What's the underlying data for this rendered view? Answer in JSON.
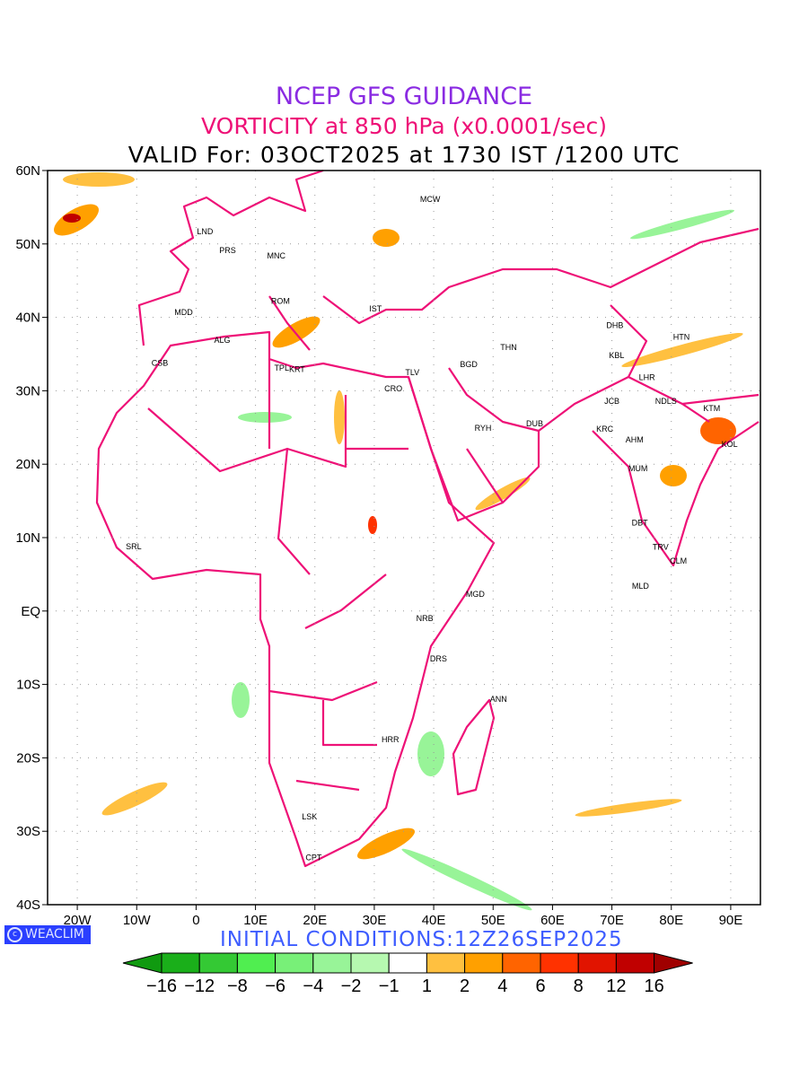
{
  "titles": {
    "line1": "NCEP GFS GUIDANCE",
    "line2": "VORTICITY at 850 hPa (x0.0001/sec)",
    "line3": "VALID For: 03OCT2025 at 1730 IST /1200 UTC"
  },
  "initial_conditions": "INITIAL  CONDITIONS:12Z26SEP2025",
  "logo": {
    "text": "WEACLIM",
    "icon": "copyright-icon"
  },
  "map": {
    "lon_range": [
      -25,
      95
    ],
    "lat_range": [
      -40,
      60
    ],
    "lon_ticks": [
      {
        "v": -20,
        "l": "20W"
      },
      {
        "v": -10,
        "l": "10W"
      },
      {
        "v": 0,
        "l": "0"
      },
      {
        "v": 10,
        "l": "10E"
      },
      {
        "v": 20,
        "l": "20E"
      },
      {
        "v": 30,
        "l": "30E"
      },
      {
        "v": 40,
        "l": "40E"
      },
      {
        "v": 50,
        "l": "50E"
      },
      {
        "v": 60,
        "l": "60E"
      },
      {
        "v": 70,
        "l": "70E"
      },
      {
        "v": 80,
        "l": "80E"
      },
      {
        "v": 90,
        "l": "90E"
      }
    ],
    "lat_ticks": [
      {
        "v": 60,
        "l": "60N"
      },
      {
        "v": 50,
        "l": "50N"
      },
      {
        "v": 40,
        "l": "40N"
      },
      {
        "v": 30,
        "l": "30N"
      },
      {
        "v": 20,
        "l": "20N"
      },
      {
        "v": 10,
        "l": "10N"
      },
      {
        "v": 0,
        "l": "EQ"
      },
      {
        "v": -10,
        "l": "10S"
      },
      {
        "v": -20,
        "l": "20S"
      },
      {
        "v": -30,
        "l": "30S"
      },
      {
        "v": -40,
        "l": "40S"
      }
    ],
    "cities": [
      {
        "n": "MCW",
        "lon": 39.4,
        "lat": 56.1
      },
      {
        "n": "LND",
        "lon": 1.5,
        "lat": 51.7
      },
      {
        "n": "PRS",
        "lon": 5.3,
        "lat": 49.1
      },
      {
        "n": "MNC",
        "lon": 13.5,
        "lat": 48.4
      },
      {
        "n": "MDD",
        "lon": -2.1,
        "lat": 40.7
      },
      {
        "n": "ROM",
        "lon": 14.2,
        "lat": 42.2
      },
      {
        "n": "IST",
        "lon": 30.2,
        "lat": 41.2
      },
      {
        "n": "ALG",
        "lon": 4.4,
        "lat": 36.9
      },
      {
        "n": "CSB",
        "lon": -6.1,
        "lat": 33.8
      },
      {
        "n": "TPL",
        "lon": 14.4,
        "lat": 33.1
      },
      {
        "n": "KRT",
        "lon": 17.0,
        "lat": 32.9
      },
      {
        "n": "TLV",
        "lon": 36.4,
        "lat": 32.5
      },
      {
        "n": "CRO",
        "lon": 33.2,
        "lat": 30.3
      },
      {
        "n": "BGD",
        "lon": 45.9,
        "lat": 33.6
      },
      {
        "n": "THN",
        "lon": 52.6,
        "lat": 35.9
      },
      {
        "n": "DHB",
        "lon": 70.5,
        "lat": 38.9
      },
      {
        "n": "HTN",
        "lon": 81.7,
        "lat": 37.3
      },
      {
        "n": "KBL",
        "lon": 70.8,
        "lat": 34.8
      },
      {
        "n": "LHR",
        "lon": 75.9,
        "lat": 31.8
      },
      {
        "n": "NDLS",
        "lon": 79.1,
        "lat": 28.6
      },
      {
        "n": "JCB",
        "lon": 70.0,
        "lat": 28.6
      },
      {
        "n": "KTM",
        "lon": 86.8,
        "lat": 27.6
      },
      {
        "n": "KRC",
        "lon": 68.8,
        "lat": 24.8
      },
      {
        "n": "DUB",
        "lon": 57.0,
        "lat": 25.5
      },
      {
        "n": "RYH",
        "lon": 48.3,
        "lat": 24.9
      },
      {
        "n": "AHM",
        "lon": 73.8,
        "lat": 23.3
      },
      {
        "n": "KOL",
        "lon": 89.8,
        "lat": 22.7
      },
      {
        "n": "MUM",
        "lon": 74.4,
        "lat": 19.4
      },
      {
        "n": "DBT",
        "lon": 74.7,
        "lat": 12.0
      },
      {
        "n": "TRV",
        "lon": 78.2,
        "lat": 8.7
      },
      {
        "n": "CLM",
        "lon": 81.2,
        "lat": 6.8
      },
      {
        "n": "MLD",
        "lon": 74.8,
        "lat": 3.4
      },
      {
        "n": "SRL",
        "lon": -10.5,
        "lat": 8.8
      },
      {
        "n": "MGD",
        "lon": 47.0,
        "lat": 2.3
      },
      {
        "n": "NRB",
        "lon": 38.5,
        "lat": -1.0
      },
      {
        "n": "DRS",
        "lon": 40.8,
        "lat": -6.5
      },
      {
        "n": "ANN",
        "lon": 50.9,
        "lat": -12.0
      },
      {
        "n": "HRR",
        "lon": 32.7,
        "lat": -17.5
      },
      {
        "n": "LSK",
        "lon": 19.1,
        "lat": -28.0
      },
      {
        "n": "CPT",
        "lon": 19.8,
        "lat": -33.6
      }
    ]
  },
  "colorbar": {
    "labels": [
      "−16",
      "−12",
      "−8",
      "−6",
      "−4",
      "−2",
      "−1",
      "1",
      "2",
      "4",
      "6",
      "8",
      "12",
      "16"
    ],
    "colors": [
      "#1aaf1a",
      "#34c934",
      "#50ee50",
      "#78f078",
      "#98f498",
      "#b6f8b0",
      "#ffffff",
      "#ffc040",
      "#ffa000",
      "#ff6400",
      "#ff3200",
      "#e11400",
      "#c00000"
    ],
    "low_color": "#109a10",
    "high_color": "#a00000"
  }
}
